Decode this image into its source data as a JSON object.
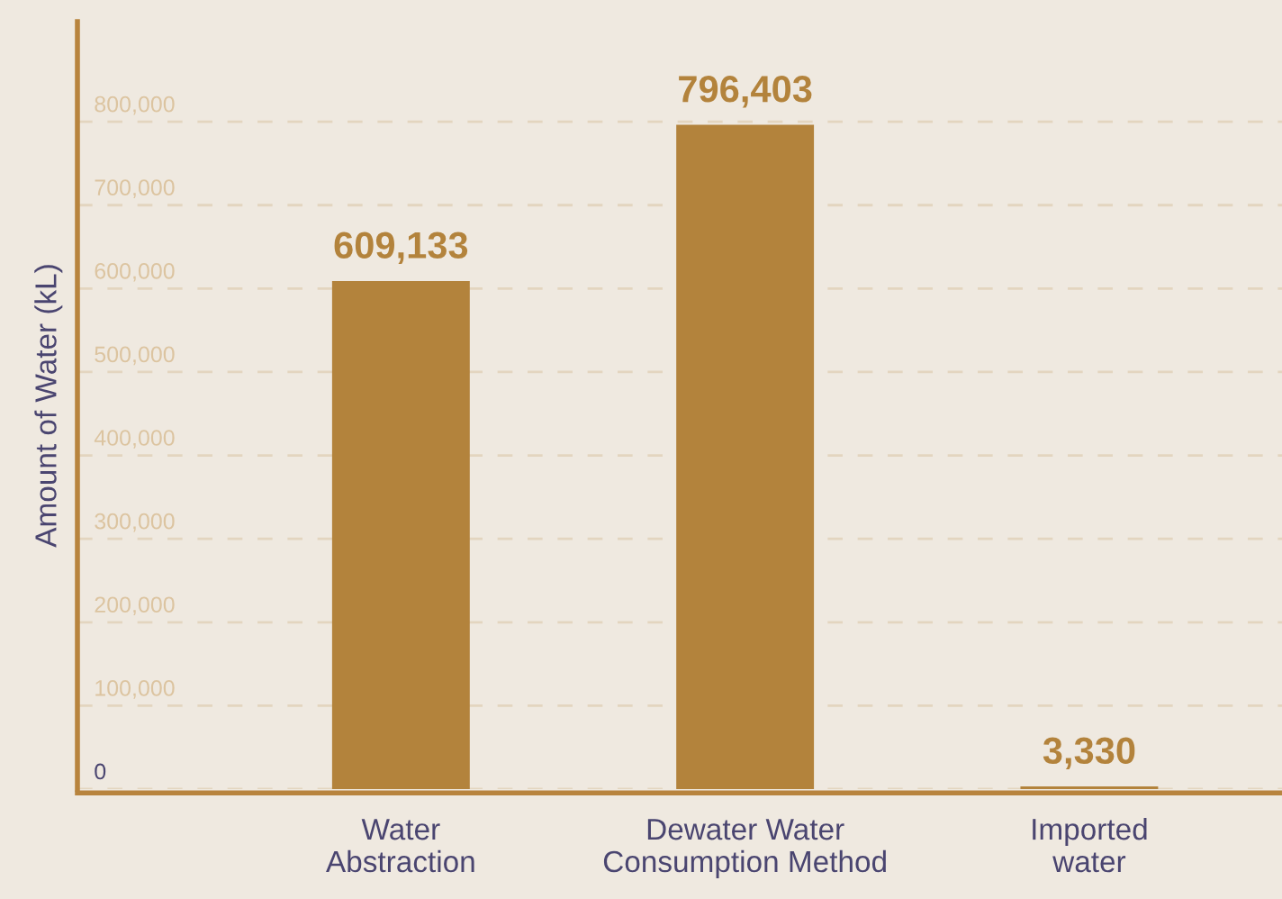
{
  "chart_data": {
    "type": "bar",
    "ylabel": "Amount of Water (kL)",
    "categories": [
      "Water\nAbstraction",
      "Dewater Water\nConsumption Method",
      "Imported\nwater"
    ],
    "values": [
      609133,
      796403,
      3330
    ],
    "color": "#b3833c",
    "ylim": [
      0,
      920000
    ],
    "yticks": [
      {
        "value": 0,
        "label": "0"
      },
      {
        "value": 100000,
        "label": "100,000"
      },
      {
        "value": 200000,
        "label": "200,000"
      },
      {
        "value": 300000,
        "label": "300,000"
      },
      {
        "value": 400000,
        "label": "400,000"
      },
      {
        "value": 500000,
        "label": "500,000"
      },
      {
        "value": 600000,
        "label": "600,000"
      },
      {
        "value": 700000,
        "label": "700,000"
      },
      {
        "value": 800000,
        "label": "800,000"
      }
    ],
    "grid": "y",
    "value_labels": [
      "609,133",
      "796,403",
      "3,330"
    ]
  }
}
